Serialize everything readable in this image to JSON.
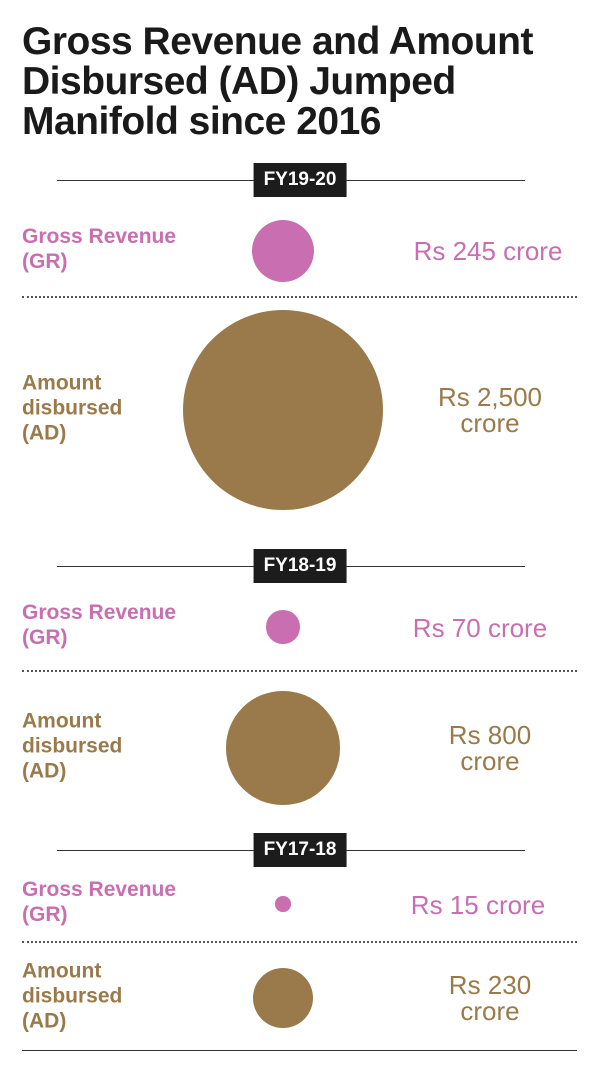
{
  "title": "Gross Revenue and Amount Disbursed (AD) Jumped Manifold since 2016",
  "colors": {
    "gross_revenue": "#c86eb1",
    "amount_disbursed": "#9a7a4a",
    "label_bg": "#1c1c1c"
  },
  "series_labels": {
    "gross_revenue": "Gross Revenue (GR)",
    "amount_disbursed": "Amount disbursed (AD)"
  },
  "chart_data": {
    "type": "bubble",
    "title": "Gross Revenue and Amount Disbursed (AD) Jumped Manifold since 2016",
    "unit": "Rs crore",
    "categories": [
      "FY19-20",
      "FY18-19",
      "FY17-18"
    ],
    "series": [
      {
        "name": "Gross Revenue (GR)",
        "values": [
          245,
          70,
          15
        ],
        "labels": [
          "Rs 245 crore",
          "Rs 70 crore",
          "Rs 15 crore"
        ]
      },
      {
        "name": "Amount disbursed (AD)",
        "values": [
          2500,
          800,
          230
        ],
        "labels": [
          "Rs 2,500 crore",
          "Rs 800 crore",
          "Rs 230 crore"
        ]
      }
    ]
  }
}
